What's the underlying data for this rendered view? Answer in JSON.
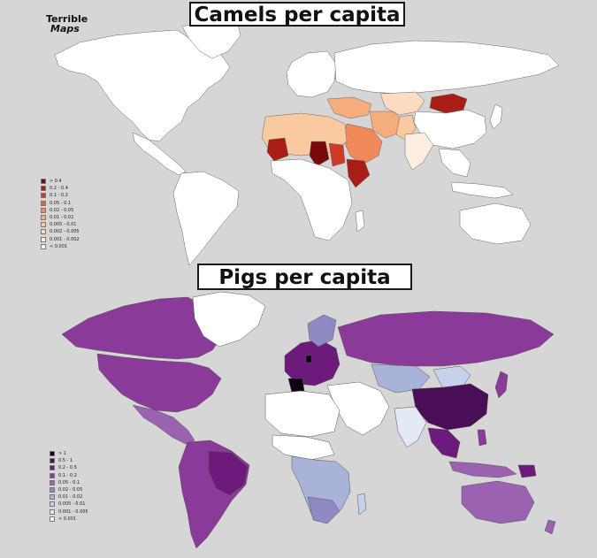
{
  "logo": {
    "line1": "Terrible",
    "line2": "Maps"
  },
  "camels": {
    "title": "Camels per capita",
    "legend": [
      {
        "label": "> 0.4",
        "color": "#7a0a0a"
      },
      {
        "label": "0.2 - 0.4",
        "color": "#a81d15"
      },
      {
        "label": "0.1 - 0.2",
        "color": "#cf3a26"
      },
      {
        "label": "0.05 - 0.1",
        "color": "#e8613e"
      },
      {
        "label": "0.02 - 0.05",
        "color": "#f1895a"
      },
      {
        "label": "0.01 - 0.02",
        "color": "#f6ad7c"
      },
      {
        "label": "0.005 - 0.01",
        "color": "#f9caa0"
      },
      {
        "label": "0.002 - 0.005",
        "color": "#fbdcc0"
      },
      {
        "label": "0.001 - 0.002",
        "color": "#fdeedf"
      },
      {
        "label": "< 0.001",
        "color": "#ffffff"
      }
    ]
  },
  "pigs": {
    "title": "Pigs per capita",
    "legend": [
      {
        "label": "> 1",
        "color": "#0e0412"
      },
      {
        "label": "0.5 - 1",
        "color": "#4a0e57"
      },
      {
        "label": "0.2 - 0.5",
        "color": "#6c1a7c"
      },
      {
        "label": "0.1 - 0.2",
        "color": "#8a3a98"
      },
      {
        "label": "0.05 - 0.1",
        "color": "#9a62b0"
      },
      {
        "label": "0.02 - 0.05",
        "color": "#8f8ac4"
      },
      {
        "label": "0.01 - 0.02",
        "color": "#a9b2d9"
      },
      {
        "label": "0.005 - 0.01",
        "color": "#c8d1ea"
      },
      {
        "label": "0.001 - 0.005",
        "color": "#e3e9f5"
      },
      {
        "label": "< 0.001",
        "color": "#ffffff"
      }
    ]
  }
}
